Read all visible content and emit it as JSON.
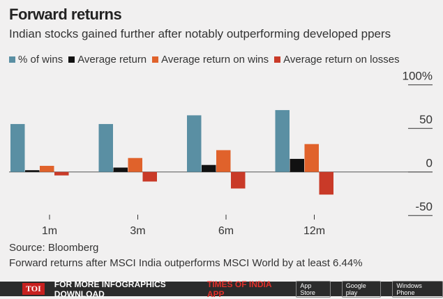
{
  "chart_data": {
    "type": "bar",
    "title": "Forward returns",
    "subtitle": "Indian stocks gained further after notably outperforming developed ppers",
    "categories": [
      "1m",
      "3m",
      "6m",
      "12m"
    ],
    "series": [
      {
        "name": "% of wins",
        "color": "#5a8fa3",
        "values": [
          55,
          55,
          65,
          71
        ]
      },
      {
        "name": "Average return",
        "color": "#111111",
        "values": [
          2,
          5,
          8,
          15
        ]
      },
      {
        "name": "Average return on wins",
        "color": "#e0622b",
        "values": [
          7,
          16,
          25,
          32
        ]
      },
      {
        "name": "Average return on losses",
        "color": "#c93a28",
        "values": [
          -4,
          -11,
          -19,
          -26
        ]
      }
    ],
    "ylim": [
      -50,
      100
    ],
    "yticks": [
      {
        "v": 100,
        "label": "100%"
      },
      {
        "v": 50,
        "label": "50"
      },
      {
        "v": 0,
        "label": "0"
      },
      {
        "v": -50,
        "label": "-50"
      }
    ],
    "xlabel": "",
    "ylabel": ""
  },
  "source": "Source: Bloomberg",
  "note": "Forward returns after MSCI India outperforms MSCI World by at least 6.44%",
  "footer": {
    "logo": "TOI",
    "text": "FOR MORE  INFOGRAPHICS DOWNLOAD ",
    "app": "TIMES OF INDIA  APP",
    "stores": [
      "App Store",
      "Google play",
      "Windows Phone"
    ]
  }
}
